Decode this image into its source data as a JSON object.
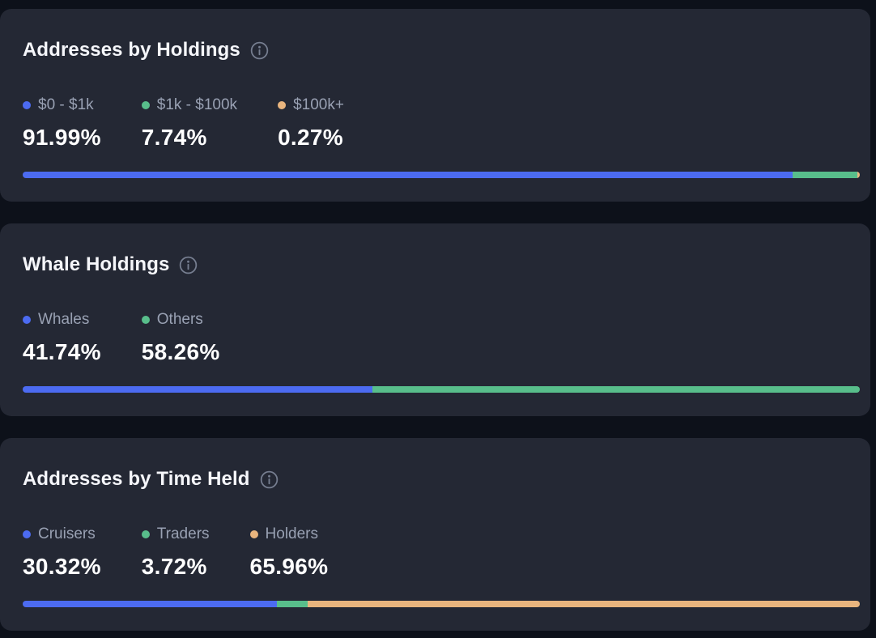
{
  "theme": {
    "page_bg": "#0d111a",
    "card_bg": "#242834",
    "title_color": "#f5f6fa",
    "legend_color": "#99a1b3",
    "value_color": "#ffffff",
    "info_icon_color": "#767e90",
    "series_blue": "#4c6bf1",
    "series_green": "#58be8b",
    "series_orange": "#e9b57e"
  },
  "chart_data": [
    {
      "type": "bar",
      "variant": "stacked-horizontal-progress",
      "title": "Addresses by Holdings",
      "categories": [
        "$0 - $1k",
        "$1k - $100k",
        "$100k+"
      ],
      "values": [
        91.99,
        7.74,
        0.27
      ],
      "value_labels": [
        "91.99%",
        "7.74%",
        "0.27%"
      ],
      "colors": [
        "#4c6bf1",
        "#58be8b",
        "#e9b57e"
      ],
      "unit": "%",
      "total": 100,
      "legend_position": "above-bar"
    },
    {
      "type": "bar",
      "variant": "stacked-horizontal-progress",
      "title": "Whale Holdings",
      "categories": [
        "Whales",
        "Others"
      ],
      "values": [
        41.74,
        58.26
      ],
      "value_labels": [
        "41.74%",
        "58.26%"
      ],
      "colors": [
        "#4c6bf1",
        "#58be8b"
      ],
      "unit": "%",
      "total": 100,
      "legend_position": "above-bar"
    },
    {
      "type": "bar",
      "variant": "stacked-horizontal-progress",
      "title": "Addresses by Time Held",
      "categories": [
        "Cruisers",
        "Traders",
        "Holders"
      ],
      "values": [
        30.32,
        3.72,
        65.96
      ],
      "value_labels": [
        "30.32%",
        "3.72%",
        "65.96%"
      ],
      "colors": [
        "#4c6bf1",
        "#58be8b",
        "#e9b57e"
      ],
      "unit": "%",
      "total": 100,
      "legend_position": "above-bar"
    }
  ]
}
